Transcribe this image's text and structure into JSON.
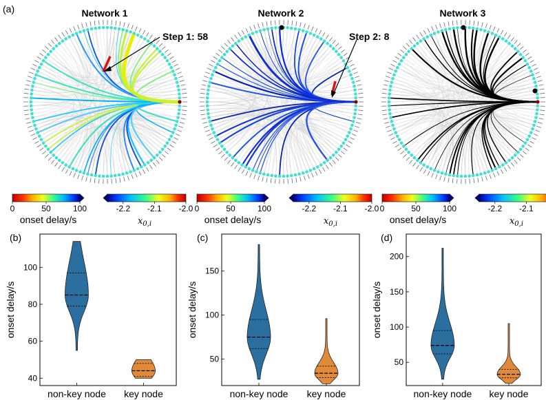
{
  "panel_labels": [
    "(a)",
    "(b)",
    "(c)",
    "(d)"
  ],
  "networks": [
    {
      "title": "Network 1",
      "annotation": "Step 1: 58",
      "edge_style": "jet",
      "highlight_color": "#e8f000"
    },
    {
      "title": "Network 2",
      "annotation": "Step 2: 8",
      "edge_style": "blue",
      "highlight_color": "#1030d0"
    },
    {
      "title": "Network 3",
      "annotation": "",
      "edge_style": "black",
      "highlight_color": "#000000"
    }
  ],
  "colorbars": {
    "onset": {
      "label": "onset delay/s",
      "ticks": [
        "0",
        "50",
        "100"
      ],
      "range": [
        0,
        100
      ]
    },
    "x0": {
      "label": "x",
      "label_sub": "0,i",
      "ticks": [
        "-2.2",
        "-2.1",
        "-2.0"
      ],
      "range": [
        -2.25,
        -2.0
      ]
    }
  },
  "colors": {
    "node": "#40e0d0",
    "violin_nonkey": "#2a6f9f",
    "violin_key": "#e08a3a",
    "grey_edge": "#c8c8c8"
  },
  "chart_data": [
    {
      "type": "violin",
      "panel": "(b)",
      "ylabel": "onset delay/s",
      "categories": [
        "non-key node",
        "key node"
      ],
      "yticks": [
        40,
        60,
        80,
        100
      ],
      "ylim": [
        36,
        118
      ],
      "series": [
        {
          "category": "non-key node",
          "min": 55,
          "max": 114,
          "q1": 79,
          "median": 85,
          "q3": 97
        },
        {
          "category": "key node",
          "min": 40,
          "max": 50,
          "q1": 41,
          "median": 44,
          "q3": 48
        }
      ]
    },
    {
      "type": "violin",
      "panel": "(c)",
      "ylabel": "onset delay/s",
      "categories": [
        "non-key node",
        "key node"
      ],
      "yticks": [
        50,
        100,
        150
      ],
      "ylim": [
        20,
        192
      ],
      "series": [
        {
          "category": "non-key node",
          "min": 27,
          "max": 180,
          "q1": 62,
          "median": 75,
          "q3": 95
        },
        {
          "category": "key node",
          "min": 22,
          "max": 96,
          "q1": 29,
          "median": 34,
          "q3": 42
        }
      ]
    },
    {
      "type": "violin",
      "panel": "(d)",
      "ylabel": "onset delay/s",
      "categories": [
        "non-key node",
        "key node"
      ],
      "yticks": [
        50,
        100,
        150,
        200
      ],
      "ylim": [
        17,
        232
      ],
      "series": [
        {
          "category": "non-key node",
          "min": 26,
          "max": 212,
          "q1": 62,
          "median": 74,
          "q3": 95
        },
        {
          "category": "key node",
          "min": 20,
          "max": 105,
          "q1": 28,
          "median": 33,
          "q3": 40
        }
      ]
    }
  ]
}
